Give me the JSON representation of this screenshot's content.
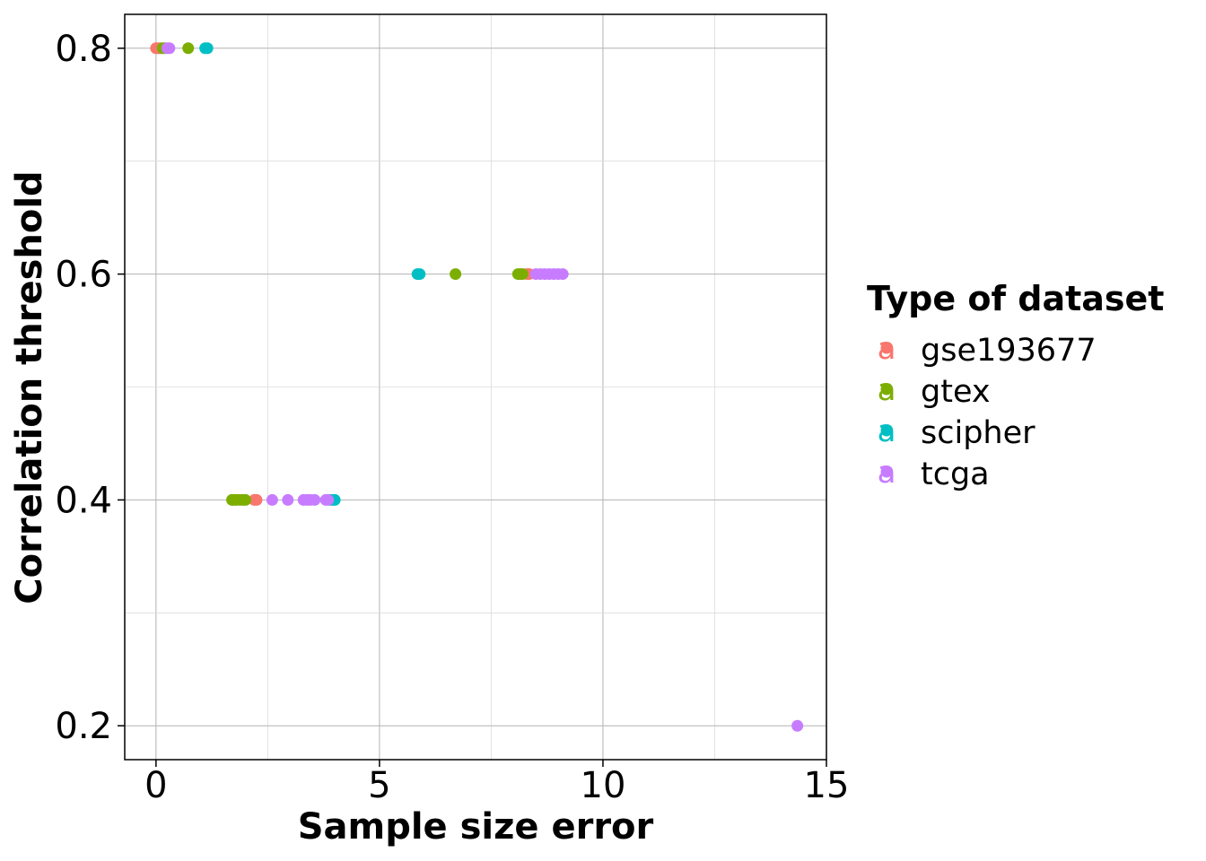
{
  "chart_data": {
    "type": "scatter",
    "xlabel": "Sample size error",
    "ylabel": "Correlation threshold",
    "xlim": [
      -0.7,
      15
    ],
    "ylim": [
      0.17,
      0.83
    ],
    "x_ticks": [
      0,
      5,
      10,
      15
    ],
    "x_tick_labels": [
      "0",
      "5",
      "10",
      "15"
    ],
    "y_ticks": [
      0.2,
      0.4,
      0.6,
      0.8
    ],
    "y_tick_labels": [
      "0.2",
      "0.4",
      "0.6",
      "0.8"
    ],
    "grid": true,
    "legend": {
      "title": "Type of dataset",
      "position": "right",
      "key_glyph": "a"
    },
    "series": [
      {
        "name": "gse193677",
        "color": "#F8766D",
        "points": [
          {
            "x": 0.0,
            "y": 0.8
          },
          {
            "x": 0.05,
            "y": 0.8
          },
          {
            "x": 0.1,
            "y": 0.8
          },
          {
            "x": 2.2,
            "y": 0.4
          },
          {
            "x": 2.25,
            "y": 0.4
          },
          {
            "x": 8.3,
            "y": 0.6
          },
          {
            "x": 8.35,
            "y": 0.6
          }
        ]
      },
      {
        "name": "gtex",
        "color": "#7CAE00",
        "points": [
          {
            "x": 0.15,
            "y": 0.8
          },
          {
            "x": 0.2,
            "y": 0.8
          },
          {
            "x": 0.72,
            "y": 0.8
          },
          {
            "x": 1.7,
            "y": 0.4
          },
          {
            "x": 1.75,
            "y": 0.4
          },
          {
            "x": 1.8,
            "y": 0.4
          },
          {
            "x": 1.88,
            "y": 0.4
          },
          {
            "x": 1.95,
            "y": 0.4
          },
          {
            "x": 2.0,
            "y": 0.4
          },
          {
            "x": 6.7,
            "y": 0.6
          },
          {
            "x": 8.1,
            "y": 0.6
          },
          {
            "x": 8.15,
            "y": 0.6
          },
          {
            "x": 8.2,
            "y": 0.6
          }
        ]
      },
      {
        "name": "scipher",
        "color": "#00BFC4",
        "points": [
          {
            "x": 1.1,
            "y": 0.8
          },
          {
            "x": 1.15,
            "y": 0.8
          },
          {
            "x": 3.9,
            "y": 0.4
          },
          {
            "x": 3.95,
            "y": 0.4
          },
          {
            "x": 4.0,
            "y": 0.4
          },
          {
            "x": 5.85,
            "y": 0.6
          },
          {
            "x": 5.9,
            "y": 0.6
          }
        ]
      },
      {
        "name": "tcga",
        "color": "#C77CFF",
        "points": [
          {
            "x": 0.25,
            "y": 0.8
          },
          {
            "x": 0.3,
            "y": 0.8
          },
          {
            "x": 2.6,
            "y": 0.4
          },
          {
            "x": 2.95,
            "y": 0.4
          },
          {
            "x": 3.3,
            "y": 0.4
          },
          {
            "x": 3.38,
            "y": 0.4
          },
          {
            "x": 3.45,
            "y": 0.4
          },
          {
            "x": 3.55,
            "y": 0.4
          },
          {
            "x": 3.8,
            "y": 0.4
          },
          {
            "x": 3.85,
            "y": 0.4
          },
          {
            "x": 8.5,
            "y": 0.6
          },
          {
            "x": 8.6,
            "y": 0.6
          },
          {
            "x": 8.7,
            "y": 0.6
          },
          {
            "x": 8.8,
            "y": 0.6
          },
          {
            "x": 8.9,
            "y": 0.6
          },
          {
            "x": 9.0,
            "y": 0.6
          },
          {
            "x": 9.1,
            "y": 0.6
          },
          {
            "x": 14.35,
            "y": 0.2
          }
        ]
      }
    ]
  }
}
